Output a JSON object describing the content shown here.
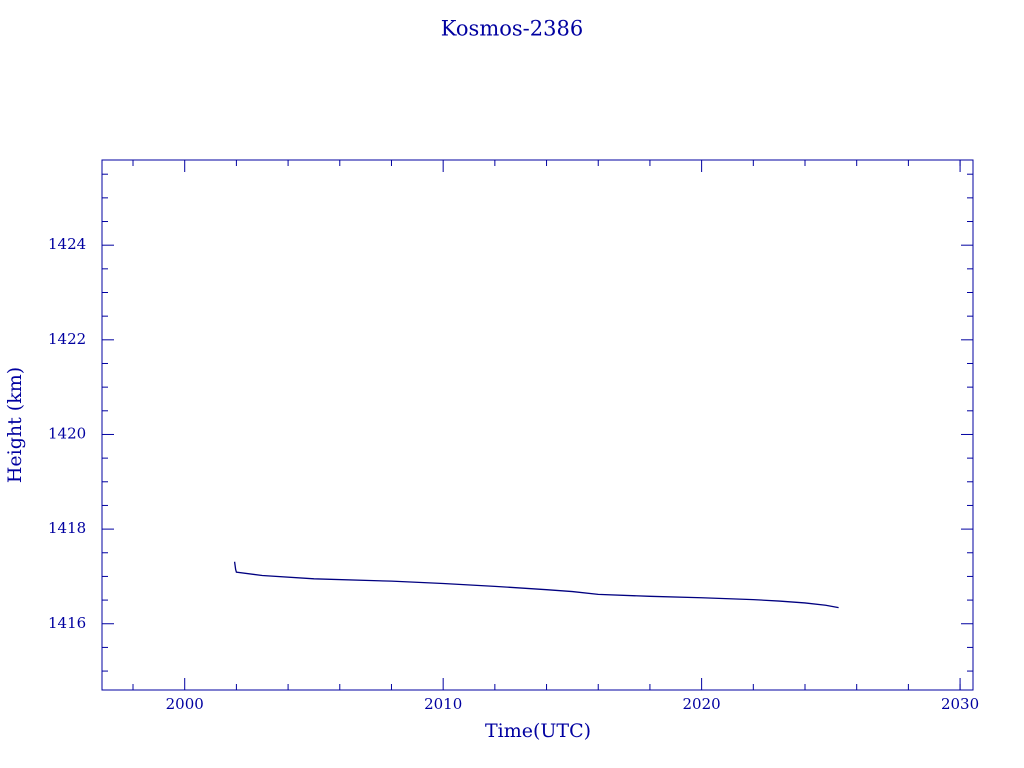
{
  "chart_data": {
    "type": "line",
    "title": "Kosmos-2386",
    "x_label": "Time(UTC)",
    "y_label": "Height (km)",
    "x": [
      2001.93,
      2001.97,
      2002.0,
      2003.0,
      2005.0,
      2008.0,
      2010.0,
      2012.0,
      2014.0,
      2015.0,
      2016.0,
      2018.0,
      2020.0,
      2022.0,
      2023.0,
      2024.0,
      2024.8,
      2025.3
    ],
    "values": [
      1417.31,
      1417.15,
      1417.09,
      1417.02,
      1416.95,
      1416.9,
      1416.85,
      1416.79,
      1416.72,
      1416.68,
      1416.62,
      1416.58,
      1416.55,
      1416.51,
      1416.48,
      1416.44,
      1416.39,
      1416.34
    ],
    "color": "#000080",
    "xlim": [
      1996.8,
      2030.5
    ],
    "xticks": [
      2000,
      2010,
      2020,
      2030
    ],
    "xminorticks": [
      1998,
      2002,
      2004,
      2006,
      2008,
      2012,
      2014,
      2016,
      2018,
      2022,
      2024,
      2026,
      2028,
      2030
    ],
    "ylim": [
      1414.6,
      1425.8
    ],
    "yticks": [
      1416,
      1418,
      1420,
      1422,
      1424
    ],
    "yminorticks": [
      1415,
      1415.5,
      1416.5,
      1417,
      1417.5,
      1418.5,
      1419,
      1419.5,
      1420.5,
      1421,
      1421.5,
      1422.5,
      1423,
      1423.5,
      1424.5,
      1425,
      1425.5
    ],
    "grid": false
  }
}
